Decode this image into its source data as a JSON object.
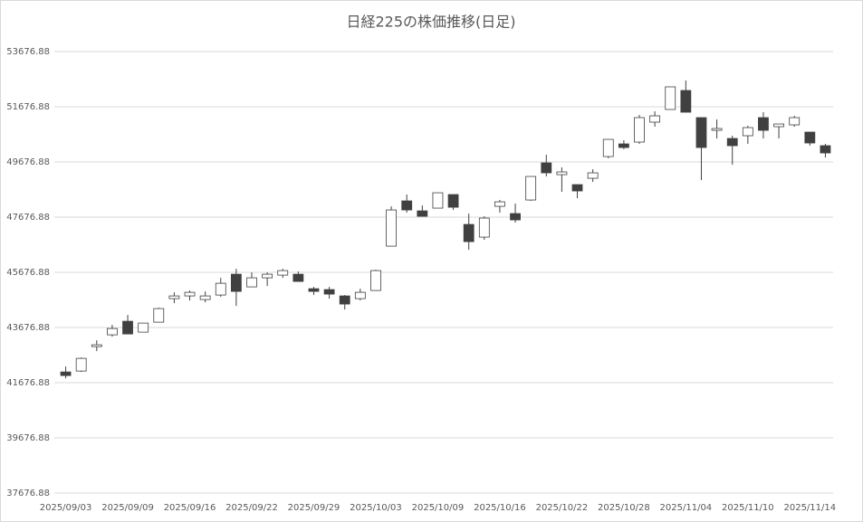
{
  "chart_data": {
    "type": "candlestick",
    "title": "日経225の株価推移(日足)",
    "categories": [
      "2025/09/03",
      null,
      null,
      null,
      "2025/09/09",
      null,
      null,
      null,
      "2025/09/16",
      null,
      null,
      null,
      "2025/09/22",
      null,
      null,
      null,
      "2025/09/29",
      null,
      null,
      null,
      "2025/10/03",
      null,
      null,
      null,
      "2025/10/09",
      null,
      null,
      null,
      "2025/10/16",
      null,
      null,
      null,
      "2025/10/22",
      null,
      null,
      null,
      "2025/10/28",
      null,
      null,
      null,
      "2025/11/04",
      null,
      null,
      null,
      "2025/11/10",
      null,
      null,
      null,
      "2025/11/14",
      null
    ],
    "open": [
      42066,
      42099,
      42984,
      43411,
      43903,
      43509,
      43870,
      44723,
      44821,
      44690,
      44854,
      45608,
      45149,
      45477,
      45575,
      45608,
      45083,
      45051,
      44821,
      44723,
      45018,
      46625,
      48265,
      47904,
      48003,
      48495,
      47412,
      46953,
      48068,
      47806,
      48298,
      49643,
      49216,
      48855,
      49085,
      49872,
      50331,
      50397,
      51119,
      51578,
      52267,
      51283,
      50823,
      50528,
      50627,
      51283,
      50955,
      51020,
      50758,
      50266
    ],
    "high": [
      42263,
      42591,
      43214,
      43771,
      44132,
      43837,
      44395,
      44952,
      45018,
      44985,
      45477,
      45805,
      45674,
      45674,
      45805,
      45707,
      45149,
      45149,
      44854,
      45083,
      45772,
      48068,
      48495,
      48101,
      48560,
      48495,
      47806,
      47707,
      48298,
      48167,
      49151,
      49938,
      49479,
      48855,
      49413,
      50495,
      50463,
      51381,
      51512,
      52398,
      52627,
      51283,
      51217,
      50627,
      50987,
      51479,
      51053,
      51348,
      50758,
      50331
    ],
    "low": [
      41836,
      42066,
      42820,
      43345,
      43443,
      43509,
      43870,
      44559,
      44657,
      44591,
      44788,
      44460,
      45149,
      45182,
      45477,
      45346,
      44854,
      44723,
      44329,
      44657,
      45018,
      46625,
      47839,
      47707,
      48003,
      47937,
      46494,
      46855,
      47839,
      47478,
      48265,
      49151,
      48593,
      48363,
      48954,
      49807,
      50135,
      50331,
      50955,
      51578,
      51479,
      49019,
      50528,
      49577,
      50331,
      50528,
      50528,
      50955,
      50266,
      49839
    ],
    "close": [
      41935,
      42558,
      43050,
      43640,
      43443,
      43837,
      44362,
      44821,
      44952,
      44821,
      45280,
      44985,
      45477,
      45608,
      45739,
      45346,
      44985,
      44887,
      44526,
      44952,
      45739,
      47937,
      47937,
      47707,
      48560,
      48035,
      46789,
      47642,
      48232,
      47576,
      49151,
      49282,
      49315,
      48626,
      49282,
      50495,
      50200,
      51283,
      51348,
      52398,
      51479,
      50200,
      50889,
      50266,
      50922,
      50823,
      51053,
      51283,
      50364,
      50003
    ],
    "up_color": "#ffffff",
    "down_color": "#404040",
    "line_color": "#404040",
    "ylim": [
      37676.88,
      53676.88
    ],
    "yticks": [
      37676.88,
      39676.88,
      41676.88,
      43676.88,
      45676.88,
      47676.88,
      49676.88,
      51676.88,
      53676.88
    ],
    "grid": true
  }
}
